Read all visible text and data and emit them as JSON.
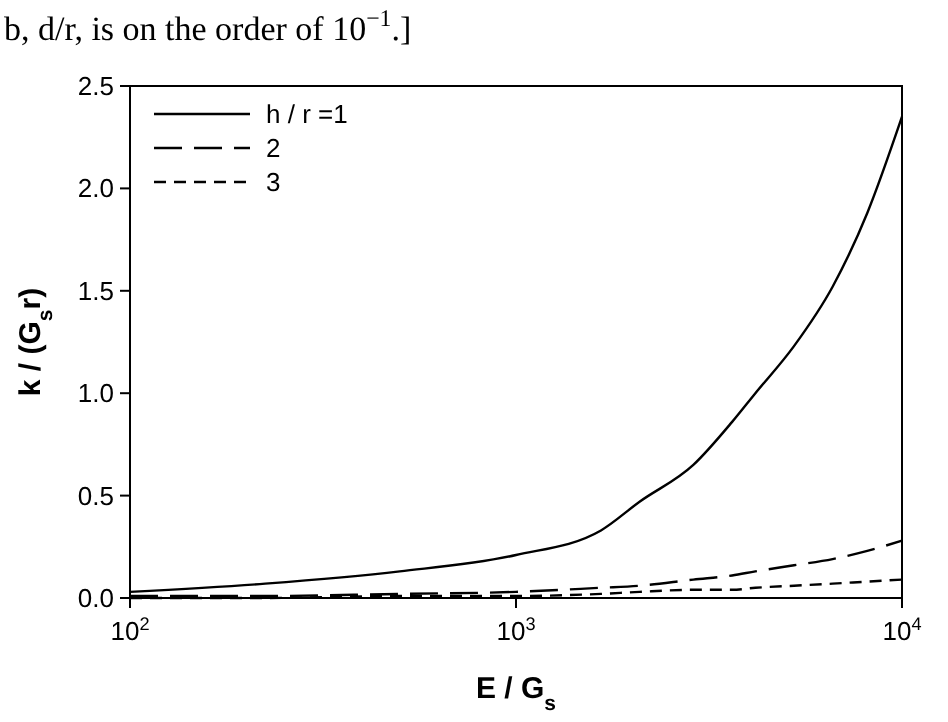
{
  "chart_data": {
    "type": "line",
    "xlabel": "E / G$_{s}$",
    "ylabel": "k / (G$_{s}$r)",
    "annotations": [
      "b, d/r, is on the order of 10$^{−1}$.]"
    ],
    "log": "x",
    "xlim": [
      100,
      10000
    ],
    "xticks": [
      {
        "value": 100,
        "label": "10$^{2}$"
      },
      {
        "value": 1000,
        "label": "10$^{3}$"
      },
      {
        "value": 10000,
        "label": "10$^{4}$"
      }
    ],
    "ylim": [
      0,
      2.5
    ],
    "yticks": [
      {
        "value": 0,
        "label": "0.0"
      },
      {
        "value": 0.5,
        "label": "0.5"
      },
      {
        "value": 1,
        "label": "1.0"
      },
      {
        "value": 1.5,
        "label": "1.5"
      },
      {
        "value": 2,
        "label": "2.0"
      },
      {
        "value": 2.5,
        "label": "2.5"
      }
    ],
    "x": [
      100,
      224,
      500,
      1000,
      1660,
      2090,
      2880,
      3630,
      4170,
      5250,
      6610,
      8130,
      10000
    ],
    "legend": "top left",
    "grid": false,
    "series": [
      {
        "name": "h / r =1",
        "color": "#000000",
        "line_style": "solid",
        "values": [
          0.03,
          0.07,
          0.13,
          0.21,
          0.33,
          0.47,
          0.65,
          0.86,
          1.0,
          1.23,
          1.52,
          1.88,
          2.35
        ]
      },
      {
        "name": "2",
        "color": "#000000",
        "line_style": "dashed",
        "values": [
          0.01,
          0.01,
          0.02,
          0.03,
          0.05,
          0.06,
          0.09,
          0.11,
          0.13,
          0.16,
          0.19,
          0.23,
          0.28
        ]
      },
      {
        "name": "3",
        "color": "#000000",
        "line_style": "dashed",
        "values": [
          0,
          0,
          0.01,
          0.01,
          0.02,
          0.03,
          0.04,
          0.04,
          0.05,
          0.06,
          0.07,
          0.08,
          0.09
        ]
      }
    ]
  }
}
